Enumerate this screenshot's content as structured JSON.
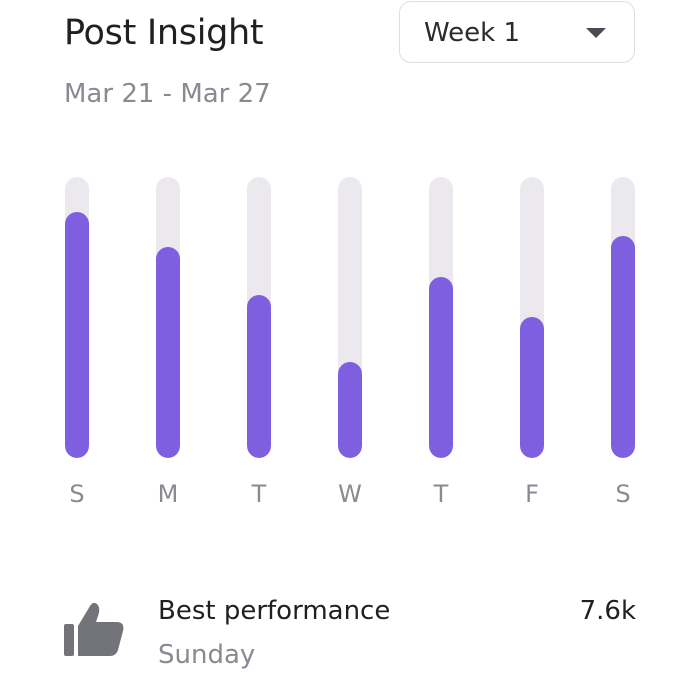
{
  "header": {
    "title": "Post Insight",
    "date_range": "Mar 21 - Mar 27"
  },
  "week_select": {
    "selected": "Week 1",
    "icon": "chevron-down-icon"
  },
  "chart_data": {
    "type": "bar",
    "categories": [
      "S",
      "M",
      "T",
      "W",
      "T",
      "F",
      "S"
    ],
    "values": [
      0.875,
      0.75,
      0.58,
      0.34,
      0.645,
      0.5,
      0.79
    ],
    "ylim": [
      0,
      1
    ],
    "grid": false
  },
  "best_performance": {
    "label": "Best performance",
    "day": "Sunday",
    "value": "7.6k",
    "icon": "thumbs-up-icon"
  },
  "colors": {
    "bar_fill": "#7d5fdf",
    "bar_track": "#ebe9ee",
    "icon": "#73737a"
  }
}
